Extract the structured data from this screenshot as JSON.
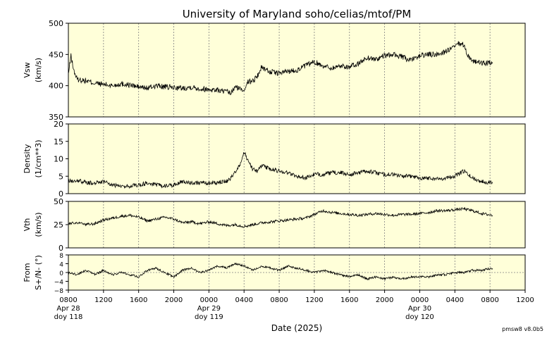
{
  "title": "University of Maryland  soho/celias/mtof/PM",
  "footer": "pmsw8 v8.0b5",
  "xaxis": {
    "label": "Date (2025)",
    "ticks": [
      "0800",
      "1200",
      "1600",
      "2000",
      "0000",
      "0400",
      "0800",
      "1200",
      "1600",
      "2000",
      "0000",
      "0400",
      "0800",
      "1200"
    ],
    "date_labels": [
      {
        "tick_index": 0,
        "date": "Apr 28",
        "doy": "doy 118"
      },
      {
        "tick_index": 4,
        "date": "Apr 29",
        "doy": "doy 119"
      },
      {
        "tick_index": 10,
        "date": "Apr 30",
        "doy": "doy 120"
      }
    ],
    "range_hours": [
      8,
      60
    ],
    "data_end_hour": 56.3
  },
  "colors": {
    "panel_bg": "#ffffd9",
    "trace": "#000000",
    "grid": "#808080"
  },
  "chart_data": [
    {
      "type": "line",
      "ylabel": [
        "Vsw",
        "(km/s)"
      ],
      "ylim": [
        350,
        500
      ],
      "yticks": [
        350,
        400,
        450,
        500
      ],
      "x": [
        8,
        8.3,
        8.6,
        9,
        10,
        11,
        12,
        13,
        14,
        15,
        16,
        17,
        18,
        19,
        20,
        21,
        22,
        23,
        24,
        25,
        26,
        26.5,
        27,
        27.5,
        28,
        28.3,
        29,
        29.5,
        30,
        31,
        32,
        33,
        34,
        35,
        36,
        37,
        38,
        39,
        40,
        41,
        42,
        43,
        44,
        45,
        46,
        47,
        48,
        49,
        50,
        51,
        52,
        52.5,
        53,
        53.5,
        54,
        55,
        56.3
      ],
      "series": [
        {
          "values": [
            418,
            448,
            425,
            410,
            408,
            404,
            402,
            400,
            403,
            401,
            398,
            396,
            400,
            398,
            397,
            396,
            398,
            395,
            394,
            393,
            390,
            388,
            398,
            395,
            393,
            405,
            408,
            415,
            430,
            422,
            420,
            423,
            425,
            432,
            438,
            432,
            428,
            432,
            430,
            435,
            445,
            442,
            448,
            450,
            446,
            440,
            448,
            450,
            450,
            455,
            462,
            468,
            465,
            448,
            440,
            436,
            436
          ]
        }
      ]
    },
    {
      "type": "line",
      "ylabel": [
        "Density",
        "(1/cm**3)"
      ],
      "ylim": [
        0,
        20
      ],
      "yticks": [
        0,
        5,
        10,
        15,
        20
      ],
      "x": [
        8,
        9,
        10,
        11,
        12,
        13,
        14,
        15,
        16,
        17,
        18,
        19,
        20,
        21,
        22,
        23,
        24,
        25,
        26,
        26.5,
        27,
        27.5,
        28,
        28.5,
        29,
        29.5,
        30,
        31,
        32,
        33,
        34,
        35,
        36,
        37,
        38,
        39,
        40,
        41,
        42,
        43,
        44,
        45,
        46,
        47,
        48,
        49,
        50,
        51,
        52,
        53,
        54,
        55,
        56.3
      ],
      "series": [
        {
          "values": [
            3.5,
            3.8,
            3.2,
            3,
            3.5,
            2.5,
            2,
            2.2,
            2.5,
            3,
            2.5,
            2.2,
            2.5,
            3.5,
            3.2,
            3,
            3,
            3.2,
            3.5,
            4.5,
            6,
            8,
            12,
            9,
            7,
            6.5,
            8,
            7,
            6.5,
            6,
            5,
            4.5,
            5.5,
            5.5,
            6,
            6,
            5.5,
            6,
            6.5,
            6,
            5.5,
            5.5,
            5,
            5,
            4.5,
            4.5,
            4.2,
            4.5,
            5,
            6.5,
            4.5,
            3.5,
            3.2
          ]
        }
      ]
    },
    {
      "type": "line",
      "ylabel": [
        "Vth",
        "(km/s)"
      ],
      "ylim": [
        0,
        50
      ],
      "yticks": [
        0,
        25,
        50
      ],
      "x": [
        8,
        9,
        10,
        11,
        12,
        13,
        14,
        15,
        16,
        17,
        18,
        19,
        20,
        21,
        22,
        23,
        24,
        25,
        26,
        27,
        28,
        29,
        30,
        31,
        32,
        33,
        34,
        35,
        36,
        37,
        38,
        39,
        40,
        41,
        42,
        43,
        44,
        45,
        46,
        47,
        48,
        49,
        50,
        51,
        52,
        53,
        54,
        55,
        56.3
      ],
      "series": [
        {
          "values": [
            26,
            27,
            25,
            26,
            30,
            32,
            34,
            35,
            33,
            29,
            31,
            33,
            31,
            27,
            28,
            26,
            28,
            26,
            24,
            25,
            23,
            25,
            27,
            28,
            29,
            30,
            31,
            32,
            36,
            40,
            38,
            37,
            36,
            35,
            36,
            37,
            36,
            35,
            36,
            36,
            37,
            38,
            40,
            40,
            41,
            42,
            40,
            37,
            35
          ]
        }
      ]
    },
    {
      "type": "line",
      "ylabel": [
        "From",
        "S+/N- (°)"
      ],
      "ylim": [
        -8,
        8
      ],
      "yticks": [
        -8,
        -4,
        0,
        4,
        8
      ],
      "yticklabels": [
        "−8",
        "−4",
        "0",
        "4",
        "8"
      ],
      "zero_line": true,
      "x": [
        8,
        9,
        10,
        11,
        12,
        13,
        14,
        15,
        16,
        17,
        18,
        19,
        20,
        21,
        22,
        23,
        24,
        25,
        26,
        27,
        28,
        29,
        30,
        31,
        32,
        33,
        34,
        35,
        36,
        37,
        38,
        39,
        40,
        41,
        42,
        43,
        44,
        45,
        46,
        47,
        48,
        49,
        50,
        51,
        52,
        53,
        54,
        55,
        56.3
      ],
      "series": [
        {
          "values": [
            0,
            -1,
            1,
            -1,
            1,
            -1,
            0,
            -1,
            -2,
            1,
            2,
            0,
            -2,
            1,
            2,
            0,
            1,
            3,
            2,
            4,
            3,
            1,
            3,
            2,
            1,
            3,
            2,
            1,
            0,
            1,
            0,
            -1,
            -2,
            -1,
            -3,
            -2,
            -3,
            -2,
            -3,
            -2,
            -2,
            -2,
            -1,
            -1,
            0,
            0,
            1,
            1,
            2
          ]
        }
      ]
    }
  ]
}
